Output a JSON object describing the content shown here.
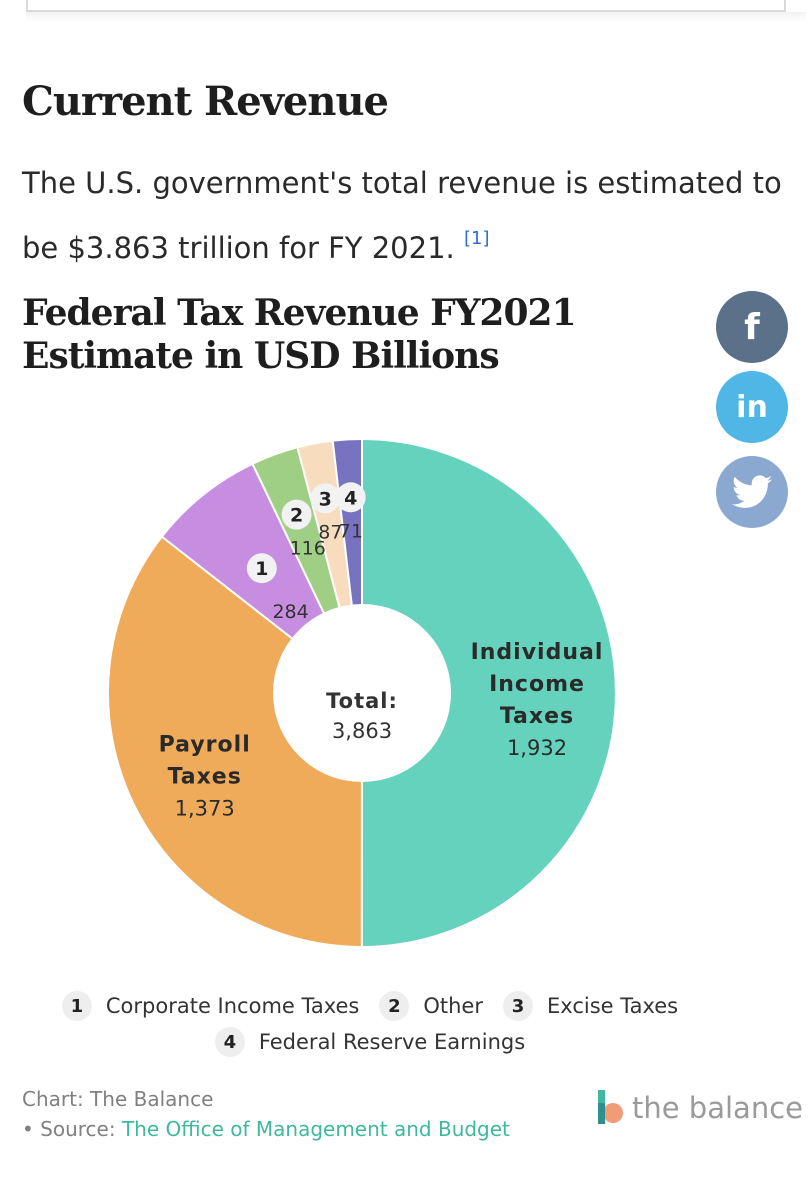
{
  "heading": "Current Revenue",
  "intro": {
    "text": "The U.S. government's total revenue is estimated to be $3.863 trillion for FY 2021.",
    "citation": "[1]"
  },
  "chart_title": "Federal Tax Revenue FY2021 Estimate in USD Billions",
  "share": {
    "facebook": "f",
    "linkedin": "in"
  },
  "chart_data": {
    "type": "pie",
    "title": "Federal Tax Revenue FY2021 Estimate in USD Billions",
    "donut": true,
    "center_label": "Total:",
    "center_value": "3,863",
    "slices": [
      {
        "label": "Individual Income Taxes",
        "value": 1932,
        "display": "1,932",
        "color": "#65d2bd",
        "label_lines": [
          "Individual",
          "Income",
          "Taxes"
        ]
      },
      {
        "label": "Payroll Taxes",
        "value": 1373,
        "display": "1,373",
        "color": "#f0ab5a",
        "label_lines": [
          "Payroll",
          "Taxes"
        ]
      },
      {
        "label": "Corporate Income Taxes",
        "value": 284,
        "display": "284",
        "color": "#c68de0",
        "marker": "1"
      },
      {
        "label": "Other",
        "value": 116,
        "display": "116",
        "color": "#9fcf84",
        "marker": "2"
      },
      {
        "label": "Excise Taxes",
        "value": 87,
        "display": "87",
        "color": "#f8dcbe",
        "marker": "3"
      },
      {
        "label": "Federal Reserve Earnings",
        "value": 71,
        "display": "71",
        "color": "#7873c0",
        "marker": "4"
      }
    ]
  },
  "legend": [
    {
      "num": "1",
      "label": "Corporate Income Taxes"
    },
    {
      "num": "2",
      "label": "Other"
    },
    {
      "num": "3",
      "label": "Excise Taxes"
    },
    {
      "num": "4",
      "label": "Federal Reserve Earnings"
    }
  ],
  "footer": {
    "chart_credit": "Chart: The Balance",
    "source_prefix": "• Source: ",
    "source_link": "The Office of Management and Budget"
  },
  "brand": {
    "name": "the balance",
    "colors": [
      "#3fb8a0",
      "#f29b77"
    ]
  }
}
